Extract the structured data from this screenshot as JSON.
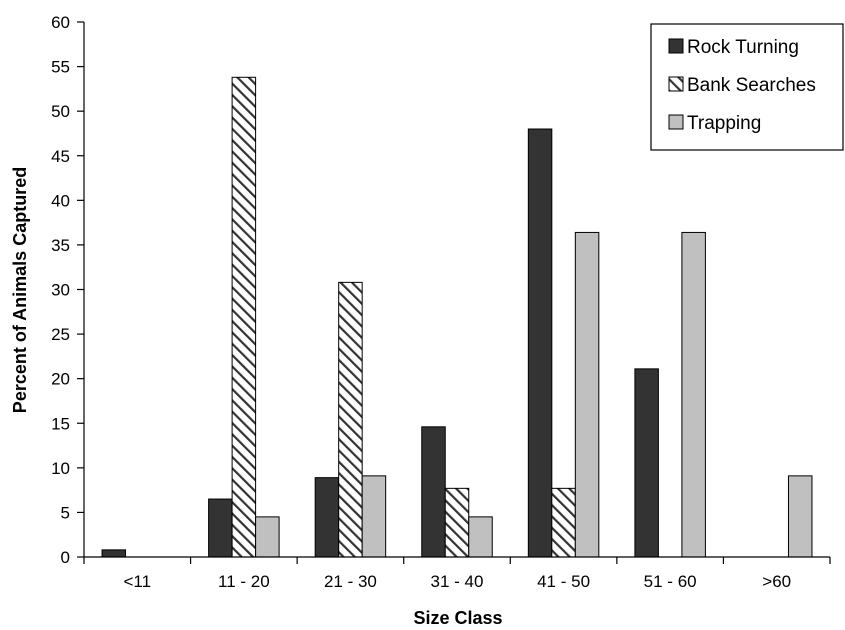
{
  "chart_data": {
    "type": "bar",
    "title": "",
    "xlabel": "Size Class",
    "ylabel": "Percent of Animals Captured",
    "ylim": [
      0,
      60
    ],
    "yticks": [
      0,
      5,
      10,
      15,
      20,
      25,
      30,
      35,
      40,
      45,
      50,
      55,
      60
    ],
    "categories": [
      "<11",
      "11 - 20",
      "21 - 30",
      "31 - 40",
      "41 - 50",
      "51 - 60",
      ">60"
    ],
    "grid": false,
    "legend_position": "top-right",
    "series": [
      {
        "name": "Rock Turning",
        "fill": "solid",
        "color": "#333333",
        "values": [
          0.8,
          6.5,
          8.9,
          14.6,
          48.0,
          21.1,
          0
        ]
      },
      {
        "name": "Bank Searches",
        "fill": "diagonal-hatch",
        "color": "#333333",
        "values": [
          0,
          53.8,
          30.8,
          7.7,
          7.7,
          0,
          0
        ]
      },
      {
        "name": "Trapping",
        "fill": "solid",
        "color": "#c0c0c0",
        "values": [
          0,
          4.5,
          9.1,
          4.5,
          36.4,
          36.4,
          9.1
        ]
      }
    ]
  }
}
